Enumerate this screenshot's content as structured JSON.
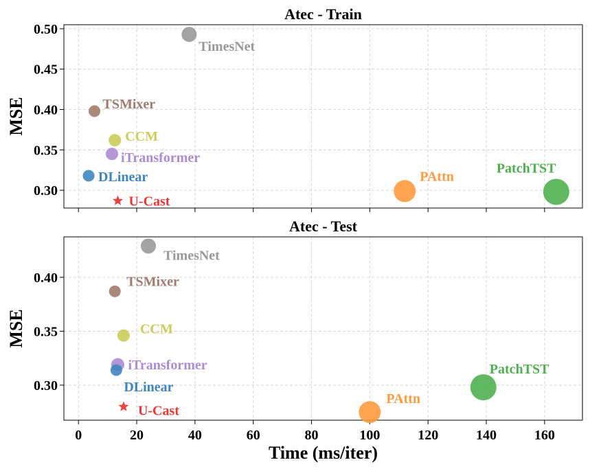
{
  "chart_data": [
    {
      "type": "scatter",
      "title": "Atec - Train",
      "xlabel": "",
      "ylabel": "MSE",
      "xlim": [
        -5,
        173
      ],
      "ylim": [
        0.278,
        0.505
      ],
      "x_ticks": [
        0,
        20,
        40,
        60,
        80,
        100,
        120,
        140,
        160
      ],
      "y_ticks": [
        0.3,
        0.35,
        0.4,
        0.45,
        0.5
      ],
      "y_tick_labels": [
        "0.30",
        "0.35",
        "0.40",
        "0.45",
        "0.50"
      ],
      "grid": true,
      "points": [
        {
          "name": "TimesNet",
          "x": 38,
          "y": 0.493,
          "marker": "circle",
          "radius": 11,
          "color": "#999999"
        },
        {
          "name": "TSMixer",
          "x": 5.5,
          "y": 0.398,
          "marker": "circle",
          "radius": 8.5,
          "color": "#a37b6d"
        },
        {
          "name": "CCM",
          "x": 12.5,
          "y": 0.362,
          "marker": "circle",
          "radius": 9,
          "color": "#cccc59"
        },
        {
          "name": "iTransformer",
          "x": 11.5,
          "y": 0.345,
          "marker": "circle",
          "radius": 9,
          "color": "#ad8cd5"
        },
        {
          "name": "DLinear",
          "x": 3.5,
          "y": 0.318,
          "marker": "circle",
          "radius": 8.5,
          "color": "#3f86c0"
        },
        {
          "name": "U-Cast",
          "x": 13.5,
          "y": 0.287,
          "marker": "star",
          "radius": 8,
          "color": "#ee3636"
        },
        {
          "name": "PAttn",
          "x": 112,
          "y": 0.299,
          "marker": "circle",
          "radius": 16,
          "color": "#ff9a3e"
        },
        {
          "name": "PatchTST",
          "x": 164,
          "y": 0.298,
          "marker": "circle",
          "radius": 19,
          "color": "#4fb04f"
        }
      ]
    },
    {
      "type": "scatter",
      "title": "Atec - Test",
      "xlabel": "Time (ms/iter)",
      "ylabel": "MSE",
      "xlim": [
        -5,
        173
      ],
      "ylim": [
        0.2675,
        0.4375
      ],
      "x_ticks": [
        0,
        20,
        40,
        60,
        80,
        100,
        120,
        140,
        160
      ],
      "y_ticks": [
        0.3,
        0.35,
        0.4
      ],
      "y_tick_labels": [
        "0.30",
        "0.35",
        "0.40"
      ],
      "grid": true,
      "points": [
        {
          "name": "TimesNet",
          "x": 24,
          "y": 0.429,
          "marker": "circle",
          "radius": 11,
          "color": "#999999"
        },
        {
          "name": "TSMixer",
          "x": 12.5,
          "y": 0.387,
          "marker": "circle",
          "radius": 8.5,
          "color": "#a37b6d"
        },
        {
          "name": "CCM",
          "x": 15.5,
          "y": 0.346,
          "marker": "circle",
          "radius": 9,
          "color": "#cccc59"
        },
        {
          "name": "iTransformer",
          "x": 13.5,
          "y": 0.319,
          "marker": "circle",
          "radius": 9.5,
          "color": "#ad8cd5"
        },
        {
          "name": "DLinear",
          "x": 13,
          "y": 0.314,
          "marker": "circle",
          "radius": 8.5,
          "color": "#3f86c0"
        },
        {
          "name": "U-Cast",
          "x": 15.5,
          "y": 0.28,
          "marker": "star",
          "radius": 8,
          "color": "#ee3636"
        },
        {
          "name": "PAttn",
          "x": 100,
          "y": 0.275,
          "marker": "circle",
          "radius": 16,
          "color": "#ff9a3e"
        },
        {
          "name": "PatchTST",
          "x": 139,
          "y": 0.298,
          "marker": "circle",
          "radius": 19,
          "color": "#4fb04f"
        }
      ]
    }
  ]
}
